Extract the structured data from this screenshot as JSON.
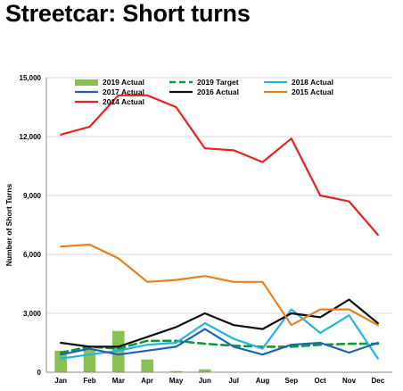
{
  "title": "Streetcar: Short turns",
  "chart_data": {
    "type": "line",
    "ylabel": "Number of Short Turns",
    "xlabel": "",
    "ylim": [
      0,
      15000
    ],
    "yticks": [
      0,
      3000,
      6000,
      9000,
      12000,
      15000
    ],
    "ytick_labels": [
      "0",
      "3,000",
      "6,000",
      "9,000",
      "12,000",
      "15,000"
    ],
    "categories": [
      "Jan",
      "Feb",
      "Mar",
      "Apr",
      "May",
      "Jun",
      "Jul",
      "Aug",
      "Sep",
      "Oct",
      "Nov",
      "Dec"
    ],
    "grid": "horizontal",
    "legend_position": "top",
    "bars": {
      "name": "2019 Actual",
      "color": "#8cc152",
      "values": [
        1100,
        1150,
        2100,
        650,
        60,
        150,
        null,
        null,
        null,
        null,
        null,
        null
      ]
    },
    "series": [
      {
        "name": "2019 Target",
        "color": "#0d9b3a",
        "dash": true,
        "values": [
          1000,
          1300,
          1200,
          1600,
          1600,
          1450,
          1350,
          1300,
          1300,
          1400,
          1450,
          1450
        ]
      },
      {
        "name": "2018 Actual",
        "color": "#22b5e4",
        "dash": false,
        "values": [
          700,
          900,
          1100,
          1400,
          1500,
          2500,
          1700,
          1200,
          3200,
          2000,
          2900,
          700
        ]
      },
      {
        "name": "2017 Actual",
        "color": "#1f64b4",
        "dash": false,
        "values": [
          900,
          1200,
          900,
          1100,
          1300,
          2200,
          1300,
          900,
          1400,
          1500,
          1000,
          1500
        ]
      },
      {
        "name": "2016 Actual",
        "color": "#111111",
        "dash": false,
        "values": [
          1500,
          1300,
          1300,
          1800,
          2300,
          3000,
          2400,
          2200,
          3000,
          2800,
          3700,
          2500
        ]
      },
      {
        "name": "2015 Actual",
        "color": "#e8801e",
        "dash": false,
        "values": [
          6400,
          6500,
          5800,
          4600,
          4700,
          4900,
          4600,
          4600,
          2400,
          3200,
          3200,
          2400
        ]
      },
      {
        "name": "2014 Actual",
        "color": "#e52421",
        "dash": false,
        "values": [
          12100,
          12500,
          14100,
          14100,
          13500,
          11400,
          11300,
          10700,
          11900,
          9000,
          8700,
          7000
        ]
      }
    ]
  }
}
